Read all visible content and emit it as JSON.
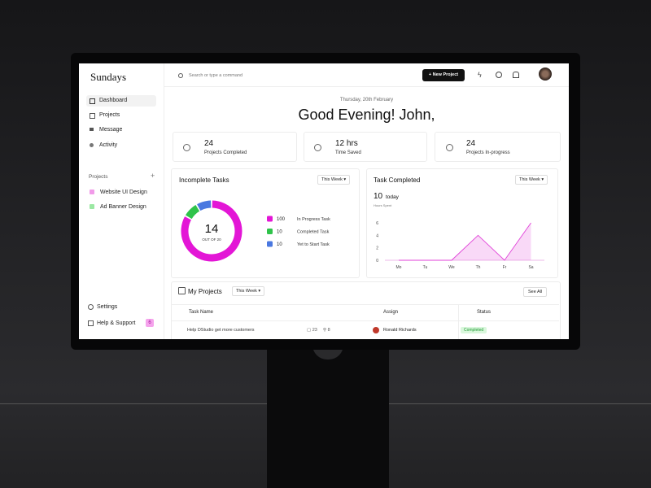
{
  "sidebar": {
    "brand": "Sundays",
    "nav": [
      "Dashboard",
      "Projects",
      "Message",
      "Activity"
    ],
    "projects_heading": "Projects",
    "projects": [
      "Website UI Design",
      "Ad Banner Design"
    ],
    "footer": [
      "Settings",
      "Help & Support"
    ],
    "help_badge": "6"
  },
  "topbar": {
    "search_placeholder": "Search or type a command",
    "new_project": "New Project"
  },
  "greeting": {
    "date": "Thursday, 20th February",
    "title": "Good Evening! John,"
  },
  "stats": [
    {
      "value": "24",
      "label": "Projects Completed"
    },
    {
      "value": "12 hrs",
      "label": "Time Saved"
    },
    {
      "value": "24",
      "label": "Projects In-progress"
    }
  ],
  "chart_data": [
    {
      "type": "donut",
      "title": "Incomplete Tasks",
      "filter": "This Week",
      "center_value": "14",
      "center_label": "OUT OF 20",
      "categories": [
        "In Progress Task",
        "Completed Task",
        "Yet to Start Task"
      ],
      "values": [
        100,
        10,
        10
      ],
      "colors": [
        "#e316d6",
        "#2fc34a",
        "#4a78e0"
      ]
    },
    {
      "type": "area",
      "title": "Task Completed",
      "filter": "This Week",
      "summary_value": "10",
      "summary_unit": "today",
      "summary_label": "Hours Spent",
      "categories": [
        "Mo",
        "Tu",
        "We",
        "Th",
        "Fr",
        "Sa"
      ],
      "series": [
        {
          "color": "#e040d8",
          "values": [
            0,
            0,
            0,
            4,
            0,
            6
          ]
        }
      ],
      "ylim": [
        0,
        6
      ],
      "yticks": [
        0,
        2,
        4,
        6
      ]
    }
  ],
  "projects_table": {
    "title": "My Projects",
    "filter": "This Week",
    "see_all": "See All",
    "columns": [
      "Task Name",
      "Assign",
      "Status"
    ],
    "rows": [
      {
        "task": "Help DStudio get more customers",
        "comments": "23",
        "attachments": "8",
        "assignee": "Ronald Richards",
        "status": "Completed"
      }
    ]
  }
}
